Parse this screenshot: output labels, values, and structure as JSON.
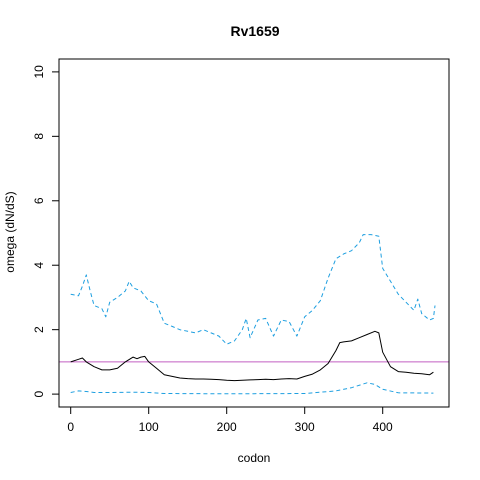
{
  "chart_data": {
    "type": "line",
    "title": "Rv1659",
    "xlabel": "codon",
    "ylabel": "omega (dN/dS)",
    "xlim": [
      -15,
      485
    ],
    "ylim": [
      -0.4,
      10.4
    ],
    "x_ticks": [
      0,
      100,
      200,
      300,
      400
    ],
    "y_ticks": [
      0,
      2,
      4,
      6,
      8,
      10
    ],
    "reference_line": {
      "y": 1,
      "color": "#c25fc2"
    },
    "series": [
      {
        "style": "solid",
        "color": "#000000",
        "points": [
          [
            0,
            1.0
          ],
          [
            10,
            1.08
          ],
          [
            15,
            1.12
          ],
          [
            20,
            1.0
          ],
          [
            30,
            0.85
          ],
          [
            40,
            0.75
          ],
          [
            50,
            0.75
          ],
          [
            60,
            0.8
          ],
          [
            70,
            1.0
          ],
          [
            80,
            1.15
          ],
          [
            85,
            1.1
          ],
          [
            90,
            1.15
          ],
          [
            95,
            1.17
          ],
          [
            100,
            1.0
          ],
          [
            110,
            0.8
          ],
          [
            120,
            0.6
          ],
          [
            130,
            0.55
          ],
          [
            140,
            0.5
          ],
          [
            150,
            0.48
          ],
          [
            160,
            0.47
          ],
          [
            170,
            0.47
          ],
          [
            180,
            0.46
          ],
          [
            190,
            0.45
          ],
          [
            200,
            0.43
          ],
          [
            210,
            0.42
          ],
          [
            220,
            0.43
          ],
          [
            230,
            0.44
          ],
          [
            240,
            0.45
          ],
          [
            250,
            0.46
          ],
          [
            260,
            0.45
          ],
          [
            270,
            0.47
          ],
          [
            280,
            0.48
          ],
          [
            290,
            0.47
          ],
          [
            300,
            0.55
          ],
          [
            310,
            0.62
          ],
          [
            320,
            0.75
          ],
          [
            330,
            0.95
          ],
          [
            340,
            1.35
          ],
          [
            345,
            1.6
          ],
          [
            350,
            1.62
          ],
          [
            360,
            1.65
          ],
          [
            370,
            1.75
          ],
          [
            380,
            1.85
          ],
          [
            390,
            1.95
          ],
          [
            395,
            1.9
          ],
          [
            400,
            1.3
          ],
          [
            410,
            0.85
          ],
          [
            420,
            0.7
          ],
          [
            430,
            0.68
          ],
          [
            440,
            0.65
          ],
          [
            450,
            0.63
          ],
          [
            460,
            0.6
          ],
          [
            465,
            0.68
          ]
        ]
      },
      {
        "style": "dashed",
        "color": "#1e9fe0",
        "points": [
          [
            0,
            3.1
          ],
          [
            10,
            3.05
          ],
          [
            15,
            3.35
          ],
          [
            20,
            3.7
          ],
          [
            25,
            3.2
          ],
          [
            30,
            2.75
          ],
          [
            40,
            2.65
          ],
          [
            45,
            2.4
          ],
          [
            50,
            2.85
          ],
          [
            60,
            3.0
          ],
          [
            70,
            3.2
          ],
          [
            75,
            3.5
          ],
          [
            80,
            3.3
          ],
          [
            90,
            3.2
          ],
          [
            100,
            2.9
          ],
          [
            110,
            2.8
          ],
          [
            120,
            2.2
          ],
          [
            130,
            2.1
          ],
          [
            140,
            2.0
          ],
          [
            150,
            1.95
          ],
          [
            160,
            1.9
          ],
          [
            170,
            2.0
          ],
          [
            180,
            1.9
          ],
          [
            190,
            1.8
          ],
          [
            200,
            1.55
          ],
          [
            210,
            1.65
          ],
          [
            220,
            2.0
          ],
          [
            225,
            2.35
          ],
          [
            230,
            1.75
          ],
          [
            240,
            2.3
          ],
          [
            250,
            2.35
          ],
          [
            260,
            1.8
          ],
          [
            270,
            2.3
          ],
          [
            280,
            2.25
          ],
          [
            290,
            1.8
          ],
          [
            300,
            2.4
          ],
          [
            310,
            2.6
          ],
          [
            320,
            2.9
          ],
          [
            330,
            3.6
          ],
          [
            340,
            4.2
          ],
          [
            350,
            4.35
          ],
          [
            360,
            4.45
          ],
          [
            370,
            4.7
          ],
          [
            375,
            4.95
          ],
          [
            385,
            4.95
          ],
          [
            395,
            4.9
          ],
          [
            400,
            3.9
          ],
          [
            410,
            3.5
          ],
          [
            420,
            3.1
          ],
          [
            430,
            2.85
          ],
          [
            440,
            2.6
          ],
          [
            445,
            2.95
          ],
          [
            450,
            2.5
          ],
          [
            460,
            2.3
          ],
          [
            465,
            2.35
          ],
          [
            467,
            2.75
          ]
        ]
      },
      {
        "style": "dashed",
        "color": "#1e9fe0",
        "points": [
          [
            0,
            0.05
          ],
          [
            10,
            0.1
          ],
          [
            20,
            0.08
          ],
          [
            30,
            0.05
          ],
          [
            50,
            0.05
          ],
          [
            80,
            0.06
          ],
          [
            100,
            0.05
          ],
          [
            120,
            0.02
          ],
          [
            200,
            0.01
          ],
          [
            300,
            0.02
          ],
          [
            340,
            0.1
          ],
          [
            360,
            0.2
          ],
          [
            380,
            0.35
          ],
          [
            390,
            0.3
          ],
          [
            400,
            0.15
          ],
          [
            420,
            0.04
          ],
          [
            465,
            0.03
          ]
        ]
      }
    ]
  }
}
